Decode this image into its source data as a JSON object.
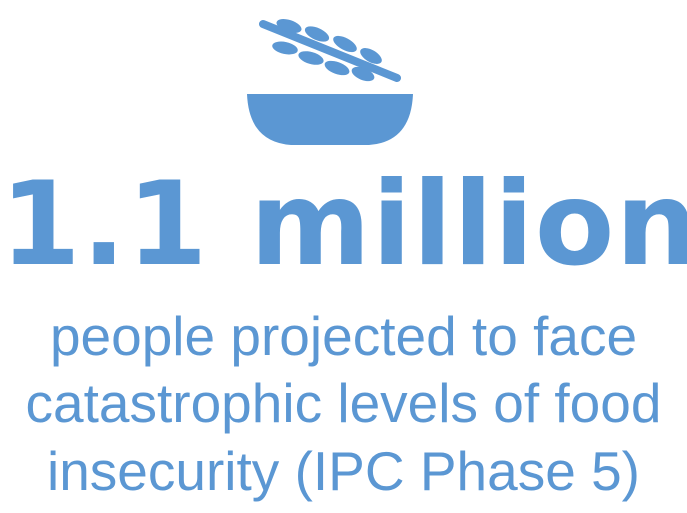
{
  "theme": {
    "accent": "#5b97d3",
    "background": "#ffffff"
  },
  "icon": {
    "name": "grain-bowl-icon"
  },
  "stat": {
    "value": "1.1 million"
  },
  "description": {
    "line1": "people projected to face",
    "line2": "catastrophic levels of food",
    "line3": "insecurity (IPC Phase 5)"
  }
}
